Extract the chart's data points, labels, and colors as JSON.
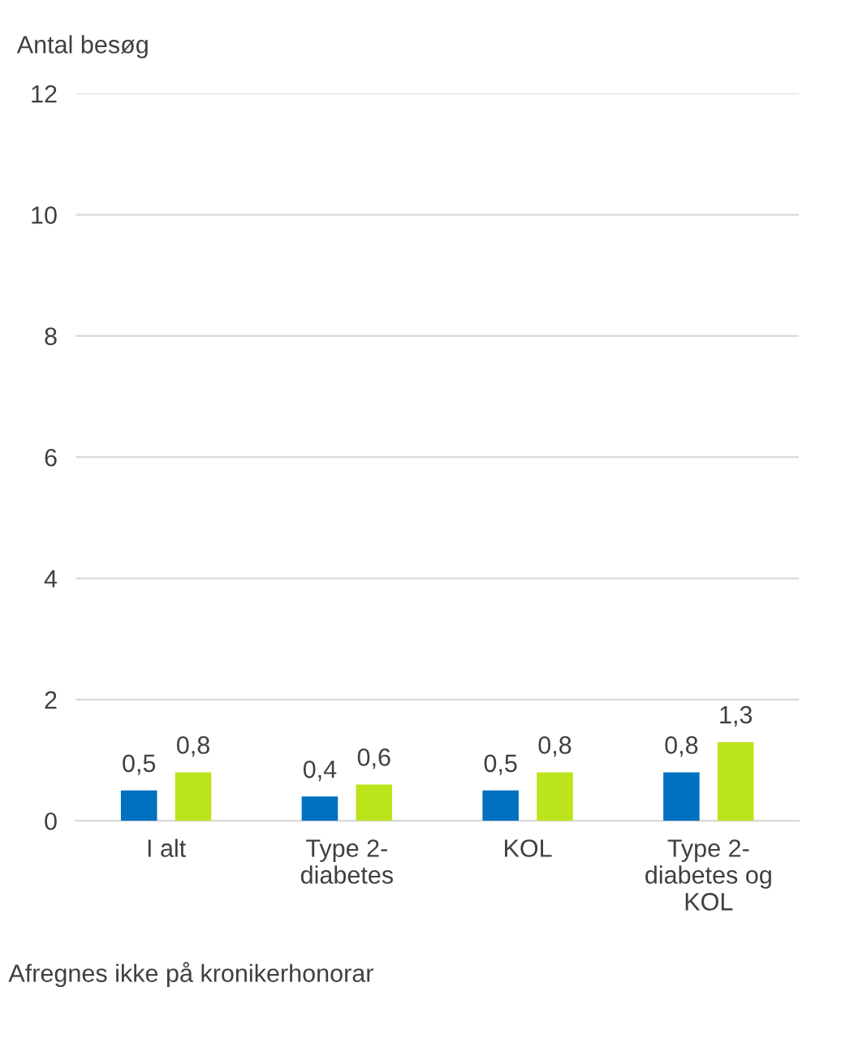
{
  "chart_data": {
    "type": "bar",
    "ylabel": "Antal besøg",
    "categories": [
      "I alt",
      "Type 2-\ndiabetes",
      "KOL",
      "Type 2-\ndiabetes og\nKOL"
    ],
    "series": [
      {
        "color": "#0070c0",
        "values": [
          0.5,
          0.4,
          0.5,
          0.8
        ],
        "value_labels": [
          "0,5",
          "0,4",
          "0,5",
          "0,8"
        ]
      },
      {
        "color": "#bce41c",
        "values": [
          0.8,
          0.6,
          0.8,
          1.3
        ],
        "value_labels": [
          "0,8",
          "0,6",
          "0,8",
          "1,3"
        ]
      }
    ],
    "ylim": [
      0,
      12
    ],
    "yticks": [
      0,
      2,
      4,
      6,
      8,
      10,
      12
    ],
    "grid": "y",
    "annotations": [
      "Afregnes ikke på kronikerhonorar"
    ]
  }
}
